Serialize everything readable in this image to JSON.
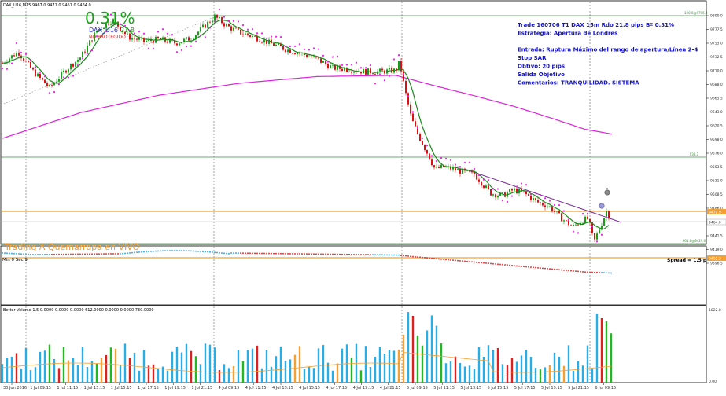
{
  "header": {
    "symbol_line": "DAX_U16,M15  9467.0 9471.0 9461.0 9464.0"
  },
  "overlay": {
    "percent": "0.31%",
    "symbol": "DAX_U16",
    "value": "21.8",
    "status": "NO PROTEGIDO",
    "live_banner": "Trading A Quemarropa en VIVO",
    "minsec": "Min 0 Sec 9",
    "spread": "Spread = 1.5 p"
  },
  "trade_info": [
    "Trade 160706 T1 DAX 15m Rdo 21.8 pips Bº 0.31%",
    "Estrategia: Apertura de Londres",
    "",
    "Entrada: Ruptura Máximo del rango de apertura/Línea 2-4",
    "Stop SAR",
    "Obtivo: 20 pips",
    "Salida Objetivo",
    "Comentarios: TRANQUILIDAD. SISTEMA"
  ],
  "price_axis": [
    "9800.0",
    "9777.5",
    "9755.0",
    "9732.5",
    "9710.0",
    "9688.0",
    "9665.5",
    "9643.0",
    "9620.5",
    "9598.0",
    "9576.0",
    "9553.5",
    "9531.0",
    "9508.5",
    "9486.0",
    "9464.0",
    "9441.5",
    "9419.0",
    "9396.5"
  ],
  "level_labels": {
    "top": "100.0@9796.3",
    "mid": "F38.2",
    "orange1": "9472.9",
    "bid": "9464.0",
    "low": "F61.8@9429.0",
    "orange2": "9402.3"
  },
  "time_axis": [
    "30 Jun 2016",
    "1 Jul 09:15",
    "1 Jul 11:15",
    "1 Jul 13:15",
    "1 Jul 15:15",
    "1 Jul 17:15",
    "1 Jul 19:15",
    "1 Jul 21:15",
    "4 Jul 09:15",
    "4 Jul 11:15",
    "4 Jul 13:15",
    "4 Jul 15:15",
    "4 Jul 17:15",
    "4 Jul 19:15",
    "4 Jul 21:15",
    "5 Jul 09:15",
    "5 Jul 11:15",
    "5 Jul 13:15",
    "5 Jul 15:15",
    "5 Jul 17:15",
    "5 Jul 19:15",
    "5 Jul 21:15",
    "6 Jul 09:15"
  ],
  "volume_panel": {
    "header": "Better Volume 1.5  0.0000  0.0000  0.0000  612.0000  0.0000  0.0000  730.0000",
    "axis": [
      "1822.8",
      "0.00"
    ]
  },
  "colors": {
    "bull": "#16a016",
    "bear": "#e01010",
    "sar": "#ee22ee",
    "ma_fast": "#1a8a1a",
    "ma_slow": "#dd22dd",
    "orange": "#f5a032",
    "level_green": "#3e8e3e",
    "text_blue": "#1515c8"
  },
  "chart_data": {
    "type": "candlestick",
    "symbol": "DAX_U16",
    "timeframe": "M15",
    "ylim": [
      9396.5,
      9800.0
    ],
    "ohlc_last": {
      "open": 9467.0,
      "high": 9471.0,
      "low": 9461.0,
      "close": 9464.0
    },
    "levels": {
      "fib_100": 9796.3,
      "fib_61_8": 9429.0,
      "orange_upper": 9472.9,
      "orange_lower": 9402.3
    },
    "close_path": [
      {
        "t": 0,
        "v": 9720
      },
      {
        "t": 20,
        "v": 9738
      },
      {
        "t": 40,
        "v": 9705
      },
      {
        "t": 60,
        "v": 9680
      },
      {
        "t": 80,
        "v": 9708
      },
      {
        "t": 100,
        "v": 9730
      },
      {
        "t": 120,
        "v": 9772
      },
      {
        "t": 140,
        "v": 9790
      },
      {
        "t": 160,
        "v": 9762
      },
      {
        "t": 180,
        "v": 9755
      },
      {
        "t": 200,
        "v": 9758
      },
      {
        "t": 220,
        "v": 9752
      },
      {
        "t": 240,
        "v": 9760
      },
      {
        "t": 260,
        "v": 9783
      },
      {
        "t": 270,
        "v": 9795
      },
      {
        "t": 285,
        "v": 9780
      },
      {
        "t": 300,
        "v": 9770
      },
      {
        "t": 320,
        "v": 9762
      },
      {
        "t": 340,
        "v": 9752
      },
      {
        "t": 360,
        "v": 9742
      },
      {
        "t": 380,
        "v": 9735
      },
      {
        "t": 400,
        "v": 9726
      },
      {
        "t": 420,
        "v": 9712
      },
      {
        "t": 440,
        "v": 9710
      },
      {
        "t": 460,
        "v": 9706
      },
      {
        "t": 480,
        "v": 9706
      },
      {
        "t": 500,
        "v": 9708
      },
      {
        "t": 505,
        "v": 9722
      },
      {
        "t": 512,
        "v": 9675
      },
      {
        "t": 520,
        "v": 9630
      },
      {
        "t": 530,
        "v": 9600
      },
      {
        "t": 540,
        "v": 9575
      },
      {
        "t": 550,
        "v": 9548
      },
      {
        "t": 560,
        "v": 9552
      },
      {
        "t": 575,
        "v": 9548
      },
      {
        "t": 590,
        "v": 9542
      },
      {
        "t": 600,
        "v": 9540
      },
      {
        "t": 610,
        "v": 9525
      },
      {
        "t": 620,
        "v": 9510
      },
      {
        "t": 635,
        "v": 9505
      },
      {
        "t": 650,
        "v": 9515
      },
      {
        "t": 665,
        "v": 9508
      },
      {
        "t": 680,
        "v": 9495
      },
      {
        "t": 695,
        "v": 9488
      },
      {
        "t": 710,
        "v": 9470
      },
      {
        "t": 725,
        "v": 9455
      },
      {
        "t": 738,
        "v": 9466
      },
      {
        "t": 745,
        "v": 9468
      },
      {
        "t": 752,
        "v": 9430
      },
      {
        "t": 760,
        "v": 9455
      },
      {
        "t": 768,
        "v": 9480
      },
      {
        "t": 775,
        "v": 9464
      }
    ],
    "ma_slow_path": [
      {
        "t": 0,
        "v": 9598
      },
      {
        "t": 100,
        "v": 9640
      },
      {
        "t": 200,
        "v": 9668
      },
      {
        "t": 300,
        "v": 9687
      },
      {
        "t": 400,
        "v": 9698
      },
      {
        "t": 500,
        "v": 9700
      },
      {
        "t": 550,
        "v": 9683
      },
      {
        "t": 600,
        "v": 9667
      },
      {
        "t": 650,
        "v": 9650
      },
      {
        "t": 700,
        "v": 9630
      },
      {
        "t": 740,
        "v": 9613
      },
      {
        "t": 775,
        "v": 9605
      }
    ]
  }
}
